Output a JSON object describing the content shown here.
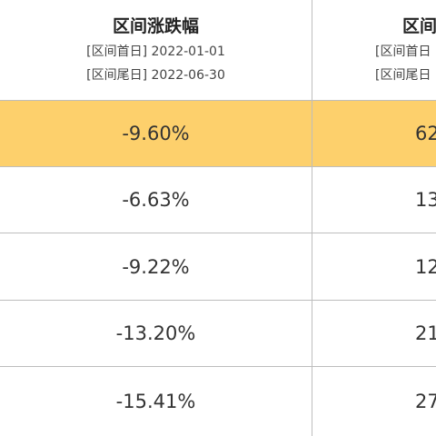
{
  "header": {
    "col1_title": "区间涨跌幅",
    "col1_start": "[区间首日] 2022-01-01",
    "col1_end": "[区间尾日] 2022-06-30",
    "col2_title": "区间",
    "col2_start": "[区间首日",
    "col2_end": "[区间尾日"
  },
  "rows": [
    {
      "change": "-9.60%",
      "col2": "62",
      "highlighted": true
    },
    {
      "change": "-6.63%",
      "col2": "13",
      "highlighted": false
    },
    {
      "change": "-9.22%",
      "col2": "12",
      "highlighted": false
    },
    {
      "change": "-13.20%",
      "col2": "21",
      "highlighted": false
    },
    {
      "change": "-15.41%",
      "col2": "27",
      "highlighted": false
    }
  ],
  "colors": {
    "highlight": "#fdd06c",
    "grid": "#bdbdbd"
  }
}
